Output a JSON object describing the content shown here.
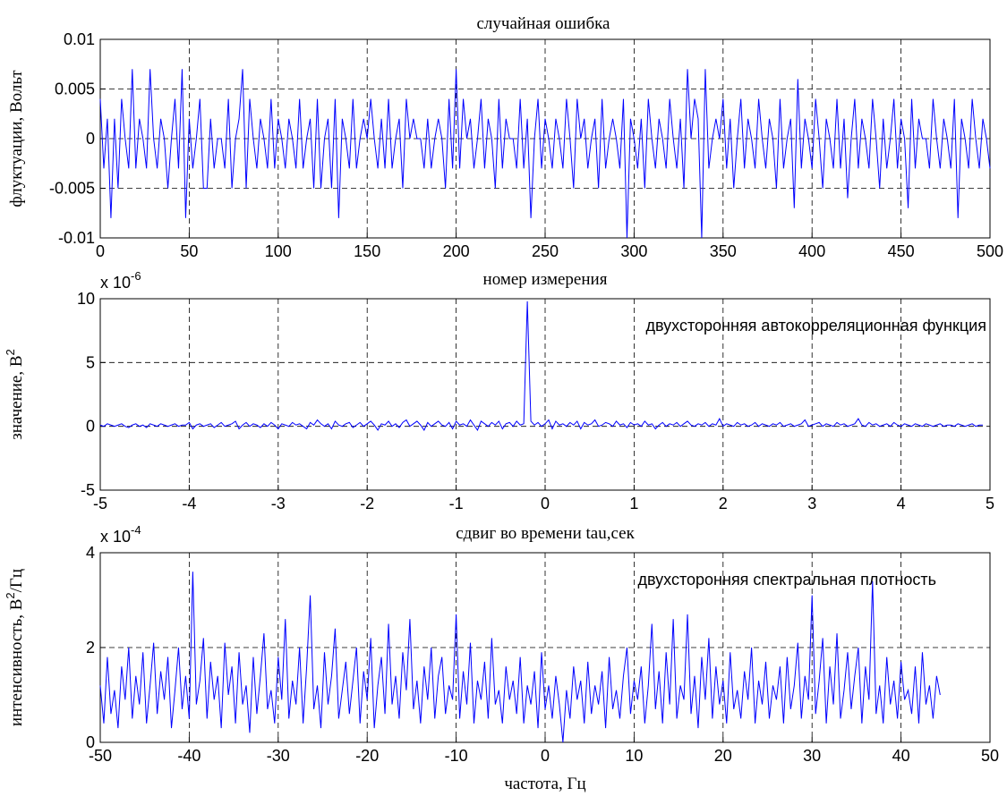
{
  "colors": {
    "series": "#0000ff",
    "grid": "#000000",
    "background": "#ffffff"
  },
  "chart_data": [
    {
      "type": "line",
      "title": "случайная ошибка",
      "xlabel": "номер измерения",
      "ylabel": "флуктуации, Вольт",
      "xlim": [
        0,
        500
      ],
      "ylim": [
        -0.01,
        0.01
      ],
      "grid": true,
      "x_ticks": [
        "0",
        "50",
        "100",
        "150",
        "200",
        "250",
        "300",
        "350",
        "400",
        "450",
        "500"
      ],
      "y_ticks": [
        "-0.01",
        "-0.005",
        "0",
        "0.005",
        "0.01"
      ],
      "series": [
        {
          "x_start": 0,
          "x_step": 2,
          "values": [
            0.004,
            -0.003,
            0.002,
            -0.008,
            0.002,
            -0.005,
            0.004,
            0.0,
            -0.003,
            0.007,
            -0.003,
            0.002,
            0.0,
            -0.003,
            0.007,
            0.0,
            -0.003,
            0.002,
            0.0,
            -0.005,
            0.0,
            0.004,
            -0.003,
            0.007,
            -0.008,
            0.002,
            -0.003,
            0.0,
            0.004,
            -0.005,
            -0.005,
            0.002,
            -0.003,
            0.0,
            0.0,
            -0.003,
            0.004,
            -0.005,
            0.0,
            0.002,
            0.007,
            -0.005,
            0.004,
            0.0,
            -0.003,
            0.002,
            0.0,
            -0.003,
            0.004,
            -0.003,
            0.002,
            0.0,
            -0.003,
            0.002,
            0.0,
            -0.003,
            0.004,
            -0.003,
            0.0,
            0.002,
            -0.005,
            0.004,
            -0.005,
            0.0,
            0.002,
            -0.005,
            0.004,
            -0.008,
            0.002,
            0.0,
            -0.003,
            0.004,
            -0.003,
            0.0,
            0.002,
            0.0,
            0.004,
            0.0,
            -0.003,
            0.002,
            -0.003,
            0.004,
            -0.003,
            0.0,
            0.002,
            -0.005,
            0.004,
            0.0,
            0.002,
            0.0,
            0.0,
            -0.003,
            0.002,
            -0.003,
            0.0,
            0.002,
            0.0,
            -0.005,
            0.004,
            -0.003,
            0.007,
            -0.003,
            0.004,
            0.0,
            0.002,
            -0.003,
            0.0,
            0.004,
            -0.003,
            0.002,
            0.0,
            -0.005,
            0.004,
            -0.003,
            0.002,
            0.0,
            0.0,
            -0.003,
            0.004,
            -0.003,
            0.002,
            -0.008,
            0.0,
            0.004,
            -0.003,
            0.002,
            0.0,
            -0.003,
            0.002,
            0.0,
            -0.003,
            0.004,
            0.0,
            -0.005,
            0.004,
            0.0,
            0.002,
            -0.003,
            0.0,
            0.002,
            -0.005,
            0.004,
            -0.003,
            0.0,
            0.002,
            0.0,
            -0.003,
            0.004,
            -0.01,
            0.002,
            0.0,
            -0.003,
            0.002,
            -0.005,
            0.004,
            0.0,
            -0.003,
            0.002,
            0.0,
            -0.003,
            0.004,
            0.0,
            -0.003,
            0.002,
            -0.005,
            0.007,
            0.0,
            0.004,
            0.002,
            -0.01,
            0.007,
            -0.003,
            0.0,
            0.002,
            0.0,
            0.004,
            -0.003,
            0.002,
            -0.005,
            0.0,
            0.004,
            -0.003,
            0.002,
            0.0,
            -0.003,
            0.004,
            0.0,
            -0.003,
            0.002,
            0.0,
            -0.005,
            0.004,
            -0.003,
            0.0,
            0.002,
            -0.007,
            0.006,
            -0.003,
            0.002,
            0.0,
            -0.003,
            0.004,
            0.0,
            -0.005,
            0.002,
            0.0,
            -0.003,
            0.004,
            -0.003,
            0.002,
            -0.006,
            0.0,
            0.004,
            -0.003,
            0.002,
            0.0,
            -0.003,
            0.004,
            0.0,
            -0.005,
            0.002,
            -0.003,
            0.0,
            0.004,
            -0.003,
            0.002,
            0.0,
            -0.007,
            0.004,
            -0.003,
            0.002,
            0.0,
            0.0,
            -0.003,
            0.004,
            0.0,
            -0.003,
            0.002,
            0.0,
            -0.003,
            0.004,
            -0.008,
            0.002,
            0.0,
            -0.003,
            0.004,
            0.0,
            -0.003,
            0.002,
            0.0,
            -0.003
          ]
        }
      ]
    },
    {
      "type": "line",
      "title": "",
      "xlabel": "сдвиг во времени tau,сек",
      "ylabel": "значение, В",
      "ylabel_sup": "2",
      "annotation": "двухсторонняя автокорреляционная функция",
      "exponent_base": "x 10",
      "exponent": "-6",
      "xlim": [
        -5,
        5
      ],
      "ylim": [
        -5,
        10
      ],
      "grid": true,
      "x_ticks": [
        "-5",
        "-4",
        "-3",
        "-2",
        "-1",
        "0",
        "1",
        "2",
        "3",
        "4",
        "5"
      ],
      "y_ticks": [
        "-5",
        "0",
        "5",
        "10"
      ],
      "series": [
        {
          "x_start": -5,
          "x_step": 0.04,
          "values": [
            0.1,
            0.0,
            0.2,
            0.1,
            0.0,
            0.1,
            0.2,
            0.0,
            -0.1,
            0.1,
            0.2,
            0.0,
            0.1,
            -0.1,
            0.2,
            0.1,
            0.0,
            0.2,
            0.1,
            0.0,
            0.1,
            0.2,
            0.0,
            0.1,
            0.1,
            0.3,
            -0.2,
            0.1,
            0.2,
            0.0,
            0.1,
            0.2,
            -0.1,
            0.1,
            0.3,
            0.0,
            0.1,
            0.2,
            0.4,
            -0.2,
            0.1,
            0.3,
            0.0,
            0.2,
            0.1,
            -0.1,
            0.2,
            0.0,
            0.3,
            0.1,
            -0.2,
            0.2,
            0.1,
            0.0,
            0.3,
            0.1,
            0.2,
            0.0,
            -0.2,
            0.3,
            0.1,
            0.5,
            0.2,
            0.0,
            0.2,
            -0.2,
            0.4,
            0.1,
            0.0,
            0.2,
            0.3,
            -0.1,
            0.1,
            0.3,
            0.0,
            0.2,
            0.4,
            0.1,
            -0.3,
            0.2,
            0.1,
            0.4,
            0.0,
            0.2,
            -0.1,
            0.3,
            0.5,
            0.0,
            0.2,
            0.4,
            0.1,
            -0.3,
            0.3,
            0.0,
            0.2,
            0.4,
            0.1,
            0.0,
            0.3,
            -0.2,
            0.4,
            0.1,
            0.2,
            0.0,
            0.5,
            0.1,
            -0.3,
            0.4,
            0.2,
            0.0,
            0.3,
            0.1,
            0.4,
            -0.2,
            0.2,
            0.3,
            0.0,
            0.4,
            0.1,
            0.2,
            9.8,
            0.4,
            0.1,
            0.3,
            0.0,
            0.2,
            0.5,
            -0.2,
            0.4,
            0.1,
            0.2,
            0.0,
            0.3,
            0.1,
            0.4,
            -0.2,
            0.3,
            0.1,
            0.2,
            0.5,
            0.0,
            0.1,
            0.3,
            0.2,
            0.0,
            0.4,
            0.1,
            0.2,
            -0.1,
            0.3,
            0.1,
            0.2,
            0.0,
            0.4,
            0.1,
            0.2,
            -0.2,
            0.1,
            0.3,
            0.0,
            0.2,
            0.1,
            0.3,
            0.0,
            0.2,
            0.4,
            0.1,
            0.0,
            0.2,
            0.1,
            0.3,
            0.0,
            0.2,
            0.1,
            0.6,
            0.0,
            0.2,
            0.1,
            0.0,
            0.3,
            0.1,
            0.2,
            0.0,
            0.1,
            0.3,
            0.0,
            0.2,
            0.1,
            0.0,
            0.2,
            0.1,
            0.3,
            0.0,
            0.1,
            0.2,
            0.0,
            0.1,
            0.2,
            0.5,
            0.0,
            0.1,
            0.2,
            0.3,
            0.0,
            0.2,
            0.1,
            0.0,
            0.3,
            0.1,
            0.2,
            0.0,
            0.1,
            0.2,
            0.6,
            0.1,
            0.0,
            0.3,
            0.1,
            0.2,
            0.0,
            0.1,
            0.2,
            0.0,
            0.3,
            0.1,
            0.0,
            0.2,
            0.1,
            0.0,
            0.2,
            0.1,
            0.0,
            0.2,
            0.1,
            0.0,
            0.1,
            0.2,
            0.0,
            0.1,
            0.1,
            0.0,
            0.2,
            0.1,
            0.0,
            0.1,
            0.2,
            0.0,
            0.1,
            0.1
          ]
        }
      ]
    },
    {
      "type": "line",
      "title": "",
      "xlabel": "частота, Гц",
      "ylabel": "интенсивность, В",
      "ylabel_sup": "2",
      "ylabel_tail": "/Гц",
      "annotation": "двухсторонняя спектральная плотность",
      "exponent_base": "x 10",
      "exponent": "-4",
      "xlim": [
        -50,
        50
      ],
      "ylim": [
        0,
        4
      ],
      "grid": true,
      "x_ticks": [
        "-50",
        "-40",
        "-30",
        "-20",
        "-10",
        "0",
        "10",
        "20",
        "30",
        "40",
        "50"
      ],
      "y_ticks": [
        "0",
        "2",
        "4"
      ],
      "series": [
        {
          "x_start": -50,
          "x_step": 0.4,
          "values": [
            1.2,
            0.4,
            1.8,
            0.6,
            1.1,
            0.3,
            1.6,
            0.9,
            2.0,
            0.5,
            1.4,
            0.8,
            1.9,
            0.4,
            1.2,
            2.1,
            0.6,
            1.5,
            0.9,
            1.8,
            0.3,
            1.1,
            2.0,
            0.7,
            1.4,
            0.5,
            3.6,
            0.8,
            1.3,
            2.2,
            0.5,
            1.7,
            0.9,
            1.4,
            0.3,
            2.1,
            1.0,
            1.6,
            0.4,
            1.9,
            0.8,
            1.2,
            0.2,
            1.8,
            0.6,
            1.4,
            2.3,
            0.7,
            1.1,
            0.4,
            1.8,
            0.9,
            2.6,
            0.5,
            1.3,
            0.8,
            2.0,
            0.4,
            1.6,
            3.1,
            0.7,
            1.2,
            0.3,
            1.9,
            0.8,
            1.4,
            2.4,
            0.5,
            1.1,
            1.7,
            0.6,
            1.3,
            2.0,
            0.4,
            1.5,
            0.9,
            2.2,
            0.3,
            1.2,
            1.8,
            0.6,
            2.5,
            0.8,
            1.4,
            0.5,
            1.9,
            1.1,
            2.6,
            0.7,
            1.3,
            0.4,
            1.6,
            0.9,
            2.0,
            0.5,
            1.4,
            1.8,
            0.6,
            1.2,
            0.9,
            2.7,
            0.5,
            1.5,
            0.8,
            2.1,
            0.4,
            1.3,
            0.9,
            1.7,
            0.5,
            2.2,
            0.8,
            1.1,
            0.4,
            1.6,
            0.9,
            1.3,
            0.6,
            1.8,
            0.4,
            1.2,
            0.8,
            1.5,
            0.3,
            1.9,
            0.7,
            1.2,
            0.5,
            1.4,
            0.8,
            0.0,
            1.1,
            0.5,
            1.6,
            0.9,
            1.3,
            0.4,
            1.7,
            0.6,
            1.2,
            0.8,
            1.5,
            0.3,
            1.8,
            0.7,
            1.1,
            0.5,
            1.4,
            2.0,
            0.6,
            1.3,
            0.9,
            1.6,
            0.4,
            1.2,
            2.5,
            0.7,
            1.5,
            0.4,
            1.9,
            0.8,
            2.6,
            0.5,
            1.2,
            0.9,
            2.7,
            0.6,
            1.4,
            0.3,
            1.8,
            0.9,
            2.2,
            0.5,
            1.6,
            0.8,
            1.3,
            0.4,
            1.9,
            0.7,
            1.1,
            0.5,
            1.5,
            0.9,
            2.0,
            0.4,
            1.3,
            0.8,
            1.7,
            0.5,
            1.2,
            0.9,
            1.6,
            0.4,
            1.8,
            0.7,
            1.2,
            2.1,
            0.5,
            1.4,
            0.9,
            3.1,
            0.6,
            1.3,
            2.2,
            0.4,
            1.6,
            0.8,
            2.3,
            0.5,
            1.1,
            1.9,
            0.7,
            1.4,
            2.0,
            0.4,
            1.6,
            0.9,
            3.4,
            0.6,
            1.2,
            0.4,
            1.8,
            0.8,
            1.3,
            0.5,
            1.7,
            0.9,
            1.1,
            0.6,
            1.6,
            0.4,
            1.9,
            0.8,
            1.2,
            0.5,
            1.4,
            1.0
          ]
        }
      ]
    }
  ]
}
